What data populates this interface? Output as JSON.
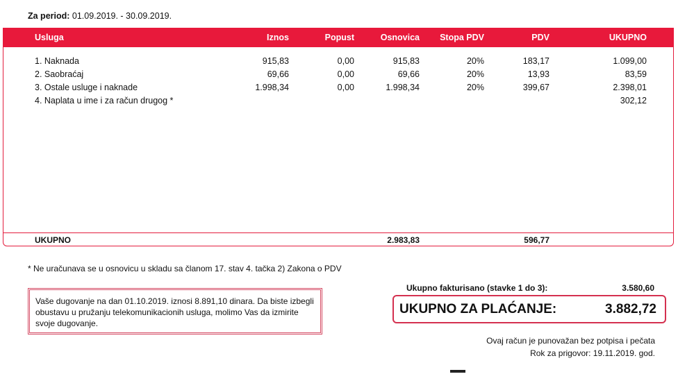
{
  "period": {
    "label": "Za period:",
    "value": "01.09.2019. - 30.09.2019."
  },
  "table": {
    "headers": [
      "Usluga",
      "Iznos",
      "Popust",
      "Osnovica",
      "Stopa PDV",
      "PDV",
      "UKUPNO"
    ],
    "rows": [
      [
        "1. Naknada",
        "915,83",
        "0,00",
        "915,83",
        "20%",
        "183,17",
        "1.099,00"
      ],
      [
        "2. Saobraćaj",
        "69,66",
        "0,00",
        "69,66",
        "20%",
        "13,93",
        "83,59"
      ],
      [
        "3. Ostale usluge i naknade",
        "1.998,34",
        "0,00",
        "1.998,34",
        "20%",
        "399,67",
        "2.398,01"
      ],
      [
        "4. Naplata u ime i za račun drugog *",
        "",
        "",
        "",
        "",
        "",
        "302,12"
      ]
    ],
    "total": {
      "label": "UKUPNO",
      "osnovica": "2.983,83",
      "pdv": "596,77"
    }
  },
  "note": "*  Ne uračunava se u osnovicu u skladu sa članom 17. stav 4. tačka 2) Zakona o PDV",
  "debt_notice": "Vaše dugovanje na dan 01.10.2019. iznosi 8.891,10 dinara. Da biste izbegli obustavu u pružanju telekomunikacionih usluga, molimo Vas da izmirite svoje dugovanje.",
  "invoiced": {
    "label": "Ukupno fakturisano (stavke 1 do 3):",
    "value": "3.580,60"
  },
  "to_pay": {
    "label": "UKUPNO ZA PLAĆANJE:",
    "value": "3.882,72"
  },
  "validity": "Ovaj račun je punovažan bez potpisa i pečata",
  "complaint_deadline": "Rok za prigovor: 19.11.2019. god.",
  "colors": {
    "accent": "#e8193b"
  }
}
